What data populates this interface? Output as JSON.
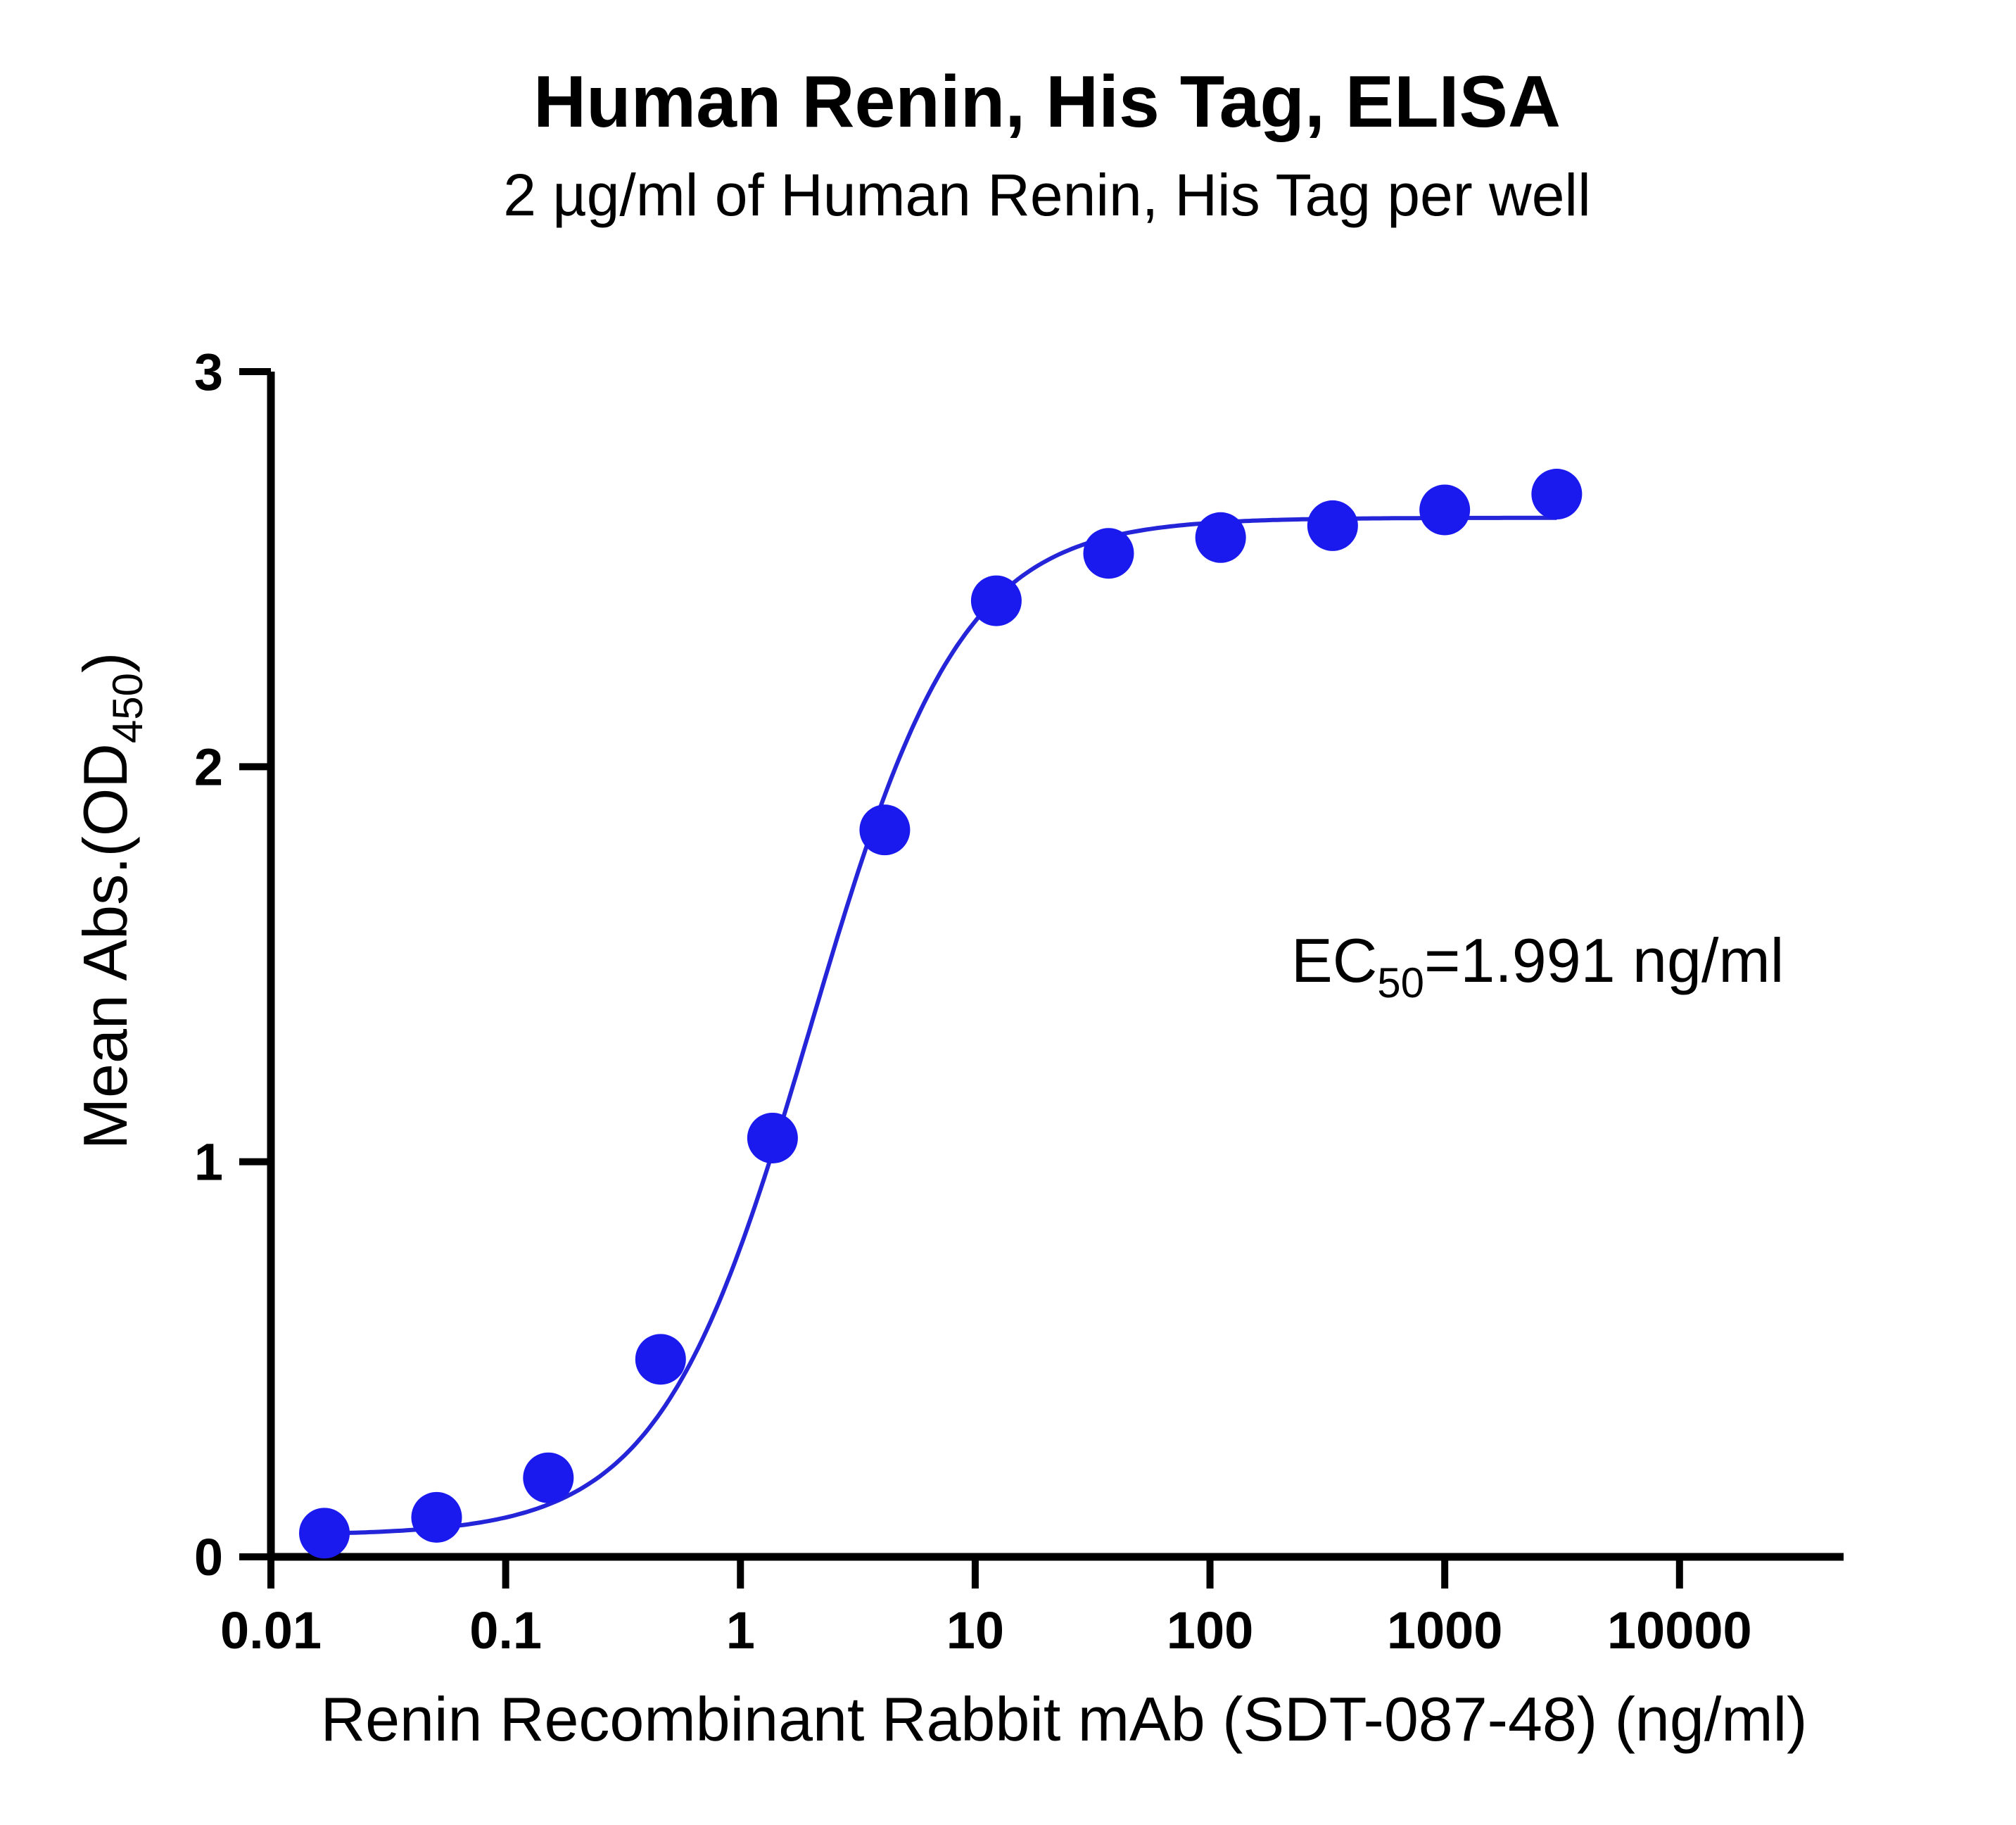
{
  "chart_data": {
    "type": "scatter",
    "title": "Human Renin, His Tag, ELISA",
    "subtitle": "2 µg/ml of Human Renin, His Tag per well",
    "xlabel": "Renin Recombinant Rabbit mAb (SDT-087-48) (ng/ml)",
    "ylabel": {
      "main": "Mean Abs.(OD",
      "sub": "450",
      "end": ")"
    },
    "x_scale": "log",
    "xlim": [
      0.01,
      50000
    ],
    "ylim": [
      0,
      3
    ],
    "x_ticks": [
      0.01,
      0.1,
      1,
      10,
      100,
      1000,
      10000
    ],
    "x_tick_labels": [
      "0.01",
      "0.1",
      "1",
      "10",
      "100",
      "1000",
      "10000"
    ],
    "y_ticks": [
      0,
      1,
      2,
      3
    ],
    "y_tick_labels": [
      "0",
      "1",
      "2",
      "3"
    ],
    "grid": false,
    "color": "#1a1aef",
    "curve_color": "#2424d8",
    "series": [
      {
        "x": [
          0.0169,
          0.0508,
          0.152,
          0.457,
          1.37,
          4.12,
          12.3,
          37.0,
          111,
          333,
          1000,
          3000
        ],
        "y": [
          0.06,
          0.1,
          0.2,
          0.5,
          1.06,
          1.84,
          2.42,
          2.54,
          2.58,
          2.61,
          2.65,
          2.69
        ]
      }
    ],
    "fit": {
      "bottom": 0.055,
      "top": 2.63,
      "ec50": 1.991,
      "hill": 1.35
    },
    "annotation": {
      "prefix": "EC",
      "sub": "50",
      "suffix": "=1.991 ng/ml"
    }
  }
}
